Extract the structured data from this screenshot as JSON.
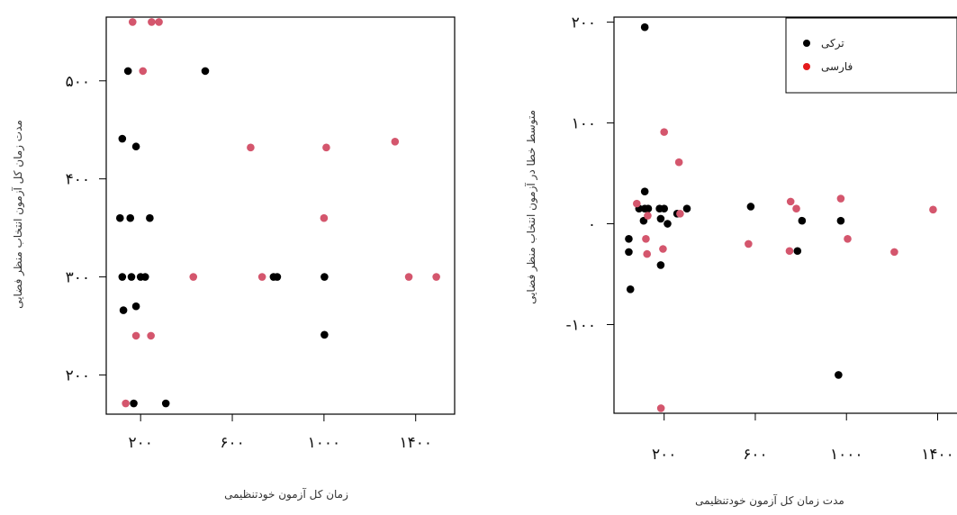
{
  "chart_data": [
    {
      "type": "scatter",
      "title": "",
      "xlabel": "زمان کل آزمون خودتنظیمی",
      "ylabel": "مدت زمان کل آزمون انتخاب منظر فضایی",
      "xlim": [
        50,
        1570
      ],
      "ylim": [
        160,
        565
      ],
      "xticks": [
        200,
        600,
        1000,
        1400
      ],
      "xtick_labels": [
        "۲۰۰",
        "۶۰۰",
        "۱۰۰۰",
        "۱۴۰۰"
      ],
      "yticks": [
        200,
        300,
        400,
        500
      ],
      "ytick_labels": [
        "۲۰۰",
        "۳۰۰",
        "۴۰۰",
        "۵۰۰"
      ],
      "grid": false,
      "series": [
        {
          "name": "ترکی",
          "color": "#000000",
          "points": [
            [
              145,
              510
            ],
            [
              482,
              510
            ],
            [
              120,
              441
            ],
            [
              180,
              433
            ],
            [
              110,
              360
            ],
            [
              155,
              360
            ],
            [
              240,
              360
            ],
            [
              120,
              300
            ],
            [
              160,
              300
            ],
            [
              200,
              300
            ],
            [
              220,
              300
            ],
            [
              780,
              300
            ],
            [
              796,
              300
            ],
            [
              1002,
              300
            ],
            [
              180,
              270
            ],
            [
              125,
              266
            ],
            [
              1002,
              241
            ],
            [
              170,
              171
            ],
            [
              310,
              171
            ]
          ]
        },
        {
          "name": "فارسی",
          "color": "#d4566d",
          "points": [
            [
              165,
              560
            ],
            [
              248,
              560
            ],
            [
              280,
              560
            ],
            [
              210,
              510
            ],
            [
              680,
              432
            ],
            [
              1010,
              432
            ],
            [
              1310,
              438
            ],
            [
              1000,
              360
            ],
            [
              430,
              300
            ],
            [
              730,
              300
            ],
            [
              1370,
              300
            ],
            [
              1490,
              300
            ],
            [
              180,
              240
            ],
            [
              245,
              240
            ],
            [
              135,
              171
            ]
          ]
        }
      ]
    },
    {
      "type": "scatter",
      "title": "",
      "xlabel": "مدت زمان کل آزمون خودتنظیمی",
      "ylabel": "متوسط خطا در آزمون انتخاب منظر فضایی",
      "xlim": [
        -20,
        1560
      ],
      "ylim": [
        -188,
        205
      ],
      "xticks": [
        200,
        600,
        1000,
        1400
      ],
      "xtick_labels": [
        "۲۰۰",
        "۶۰۰",
        "۱۰۰۰",
        "۱۴۰۰"
      ],
      "yticks": [
        -100,
        0,
        100,
        200
      ],
      "ytick_labels": [
        "-۱۰۰",
        "۰",
        "۱۰۰",
        "۲۰۰"
      ],
      "grid": false,
      "legend": {
        "position": "top-right",
        "entries": [
          {
            "label": "ترکی",
            "color": "#000000"
          },
          {
            "label": "فارسی",
            "color": "#e41a1c"
          }
        ]
      },
      "series": [
        {
          "name": "ترکی",
          "color": "#000000",
          "points": [
            [
              115,
              195
            ],
            [
              115,
              32
            ],
            [
              90,
              15
            ],
            [
              115,
              15
            ],
            [
              130,
              15
            ],
            [
              180,
              15
            ],
            [
              200,
              15
            ],
            [
              300,
              15
            ],
            [
              580,
              17
            ],
            [
              110,
              3
            ],
            [
              185,
              5
            ],
            [
              215,
              0
            ],
            [
              257,
              10
            ],
            [
              805,
              3
            ],
            [
              975,
              3
            ],
            [
              45,
              -15
            ],
            [
              45,
              -28
            ],
            [
              185,
              -41
            ],
            [
              52,
              -65
            ],
            [
              785,
              -27
            ],
            [
              965,
              -150
            ]
          ]
        },
        {
          "name": "فارسی",
          "color": "#d4566d",
          "points": [
            [
              200,
              91
            ],
            [
              265,
              61
            ],
            [
              80,
              20
            ],
            [
              128,
              8
            ],
            [
              270,
              10
            ],
            [
              755,
              22
            ],
            [
              780,
              15
            ],
            [
              975,
              25
            ],
            [
              1380,
              14
            ],
            [
              1530,
              4
            ],
            [
              120,
              -15
            ],
            [
              195,
              -25
            ],
            [
              125,
              -30
            ],
            [
              570,
              -20
            ],
            [
              750,
              -27
            ],
            [
              1005,
              -15
            ],
            [
              1210,
              -28
            ],
            [
              186,
              -183
            ]
          ]
        }
      ]
    }
  ]
}
